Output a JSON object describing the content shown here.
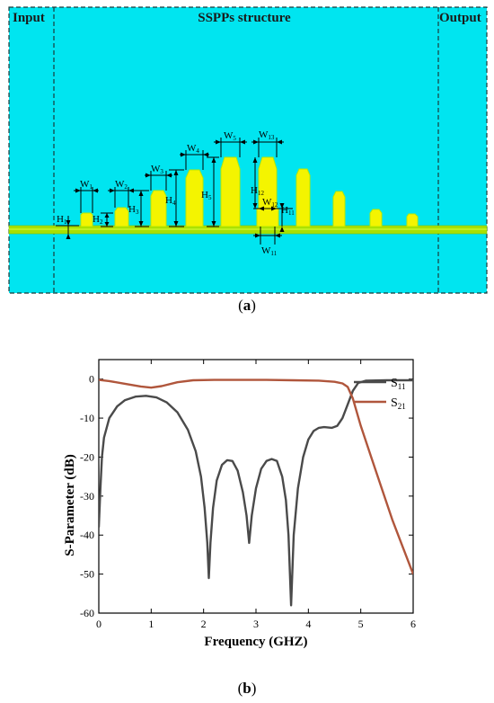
{
  "figure_a": {
    "caption_label": "a",
    "region_labels": {
      "input": "Input",
      "structure": "SSPPs structure",
      "output": "Output"
    },
    "colors": {
      "substrate": "#00e5f0",
      "metal": "#f4f400",
      "metal_edge": "#b8e800",
      "line": "#a8e000"
    },
    "dimension_labels": [
      {
        "main": "W",
        "sub": "1"
      },
      {
        "main": "W",
        "sub": "2"
      },
      {
        "main": "W",
        "sub": "3"
      },
      {
        "main": "W",
        "sub": "4"
      },
      {
        "main": "W",
        "sub": "5"
      },
      {
        "main": "W",
        "sub": "13"
      },
      {
        "main": "H",
        "sub": "1"
      },
      {
        "main": "H",
        "sub": "2"
      },
      {
        "main": "H",
        "sub": "3"
      },
      {
        "main": "H",
        "sub": "4"
      },
      {
        "main": "H",
        "sub": "5"
      },
      {
        "main": "H",
        "sub": "12"
      },
      {
        "main": "W",
        "sub": "12"
      },
      {
        "main": "H",
        "sub": "11"
      },
      {
        "main": "W",
        "sub": "11"
      }
    ]
  },
  "figure_b": {
    "caption_label": "b",
    "chart_data": {
      "type": "line",
      "title": "",
      "xlabel": "Frequency (GHZ)",
      "ylabel": "S-Parameter (dB)",
      "xlim": [
        0,
        6
      ],
      "ylim": [
        -60,
        5
      ],
      "xticks": [
        0,
        1,
        2,
        3,
        4,
        5,
        6
      ],
      "yticks": [
        0,
        -10,
        -20,
        -30,
        -40,
        -50,
        -60
      ],
      "grid": false,
      "legend_position": "top-right",
      "series": [
        {
          "name": "S11",
          "name_main": "S",
          "name_sub": "11",
          "color": "#4a4a4a",
          "points": [
            [
              0,
              -38
            ],
            [
              0.03,
              -28
            ],
            [
              0.06,
              -20
            ],
            [
              0.1,
              -15
            ],
            [
              0.2,
              -10
            ],
            [
              0.35,
              -7
            ],
            [
              0.5,
              -5.4
            ],
            [
              0.7,
              -4.5
            ],
            [
              0.9,
              -4.3
            ],
            [
              1.1,
              -4.7
            ],
            [
              1.3,
              -6
            ],
            [
              1.5,
              -8.5
            ],
            [
              1.7,
              -13
            ],
            [
              1.85,
              -18.5
            ],
            [
              1.95,
              -25
            ],
            [
              2.02,
              -33
            ],
            [
              2.07,
              -42
            ],
            [
              2.1,
              -51
            ],
            [
              2.13,
              -42
            ],
            [
              2.18,
              -33
            ],
            [
              2.25,
              -26
            ],
            [
              2.35,
              -22
            ],
            [
              2.45,
              -20.8
            ],
            [
              2.55,
              -21
            ],
            [
              2.65,
              -23.5
            ],
            [
              2.75,
              -29
            ],
            [
              2.82,
              -35
            ],
            [
              2.87,
              -42
            ],
            [
              2.92,
              -35
            ],
            [
              3.0,
              -28
            ],
            [
              3.1,
              -23
            ],
            [
              3.2,
              -21
            ],
            [
              3.3,
              -20.5
            ],
            [
              3.4,
              -21
            ],
            [
              3.5,
              -25
            ],
            [
              3.57,
              -31
            ],
            [
              3.62,
              -40
            ],
            [
              3.67,
              -58
            ],
            [
              3.72,
              -40
            ],
            [
              3.8,
              -28
            ],
            [
              3.9,
              -20
            ],
            [
              4.0,
              -15.5
            ],
            [
              4.1,
              -13.3
            ],
            [
              4.2,
              -12.5
            ],
            [
              4.3,
              -12.3
            ],
            [
              4.45,
              -12.5
            ],
            [
              4.55,
              -12
            ],
            [
              4.65,
              -10
            ],
            [
              4.75,
              -6.5
            ],
            [
              4.85,
              -3
            ],
            [
              4.95,
              -1
            ],
            [
              5.1,
              -0.4
            ],
            [
              5.5,
              -0.3
            ],
            [
              6,
              -0.3
            ]
          ]
        },
        {
          "name": "S21",
          "name_main": "S",
          "name_sub": "21",
          "color": "#b0563c",
          "points": [
            [
              0,
              -0.2
            ],
            [
              0.2,
              -0.5
            ],
            [
              0.5,
              -1.2
            ],
            [
              0.8,
              -1.9
            ],
            [
              1.0,
              -2.2
            ],
            [
              1.2,
              -1.8
            ],
            [
              1.5,
              -0.8
            ],
            [
              1.8,
              -0.3
            ],
            [
              2.2,
              -0.2
            ],
            [
              2.7,
              -0.2
            ],
            [
              3.2,
              -0.2
            ],
            [
              3.7,
              -0.3
            ],
            [
              4.2,
              -0.4
            ],
            [
              4.5,
              -0.7
            ],
            [
              4.65,
              -1.1
            ],
            [
              4.75,
              -2
            ],
            [
              4.85,
              -5
            ],
            [
              5.0,
              -12
            ],
            [
              5.2,
              -20
            ],
            [
              5.4,
              -28
            ],
            [
              5.6,
              -36
            ],
            [
              5.8,
              -43
            ],
            [
              6.0,
              -50
            ]
          ]
        }
      ]
    }
  }
}
